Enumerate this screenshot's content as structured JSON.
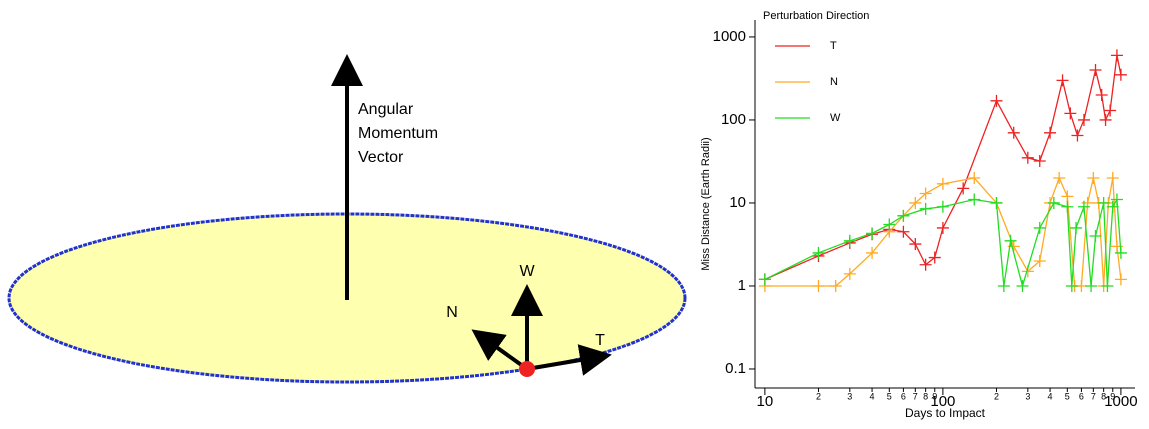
{
  "diagram": {
    "vector_label": [
      "Angular",
      "Momentum",
      "Vector"
    ],
    "labels": {
      "w": "W",
      "n": "N",
      "t": "T"
    }
  },
  "chart_data": {
    "type": "line",
    "xlabel": "Days to Impact",
    "ylabel": "Miss Distance (Earth Radii)",
    "legend_title": "Perturbation Direction",
    "legend": "upper left",
    "xscale": "log",
    "yscale": "log",
    "xlim": [
      8.8,
      1200
    ],
    "ylim": [
      0.059,
      1600
    ],
    "xticks": [
      10,
      {
        "value": 20,
        "label": "2"
      },
      {
        "value": 30,
        "label": "3"
      },
      {
        "value": 40,
        "label": "4"
      },
      {
        "value": 50,
        "label": "5"
      },
      {
        "value": 60,
        "label": "6"
      },
      {
        "value": 70,
        "label": "7"
      },
      {
        "value": 80,
        "label": "8"
      },
      {
        "value": 90,
        "label": "9"
      },
      100,
      {
        "value": 200,
        "label": "2"
      },
      {
        "value": 300,
        "label": "3"
      },
      {
        "value": 400,
        "label": "4"
      },
      {
        "value": 500,
        "label": "5"
      },
      {
        "value": 600,
        "label": "6"
      },
      {
        "value": 700,
        "label": "7"
      },
      {
        "value": 800,
        "label": "8"
      },
      {
        "value": 900,
        "label": "9"
      },
      1000
    ],
    "yticks": [
      0.1,
      1,
      10,
      100,
      1000
    ],
    "series": [
      {
        "name": "T",
        "color": "#ee2222",
        "x": [
          10,
          20,
          30,
          40,
          50,
          60,
          70,
          80,
          90,
          100,
          130,
          200,
          250,
          300,
          350,
          400,
          470,
          520,
          570,
          620,
          720,
          780,
          820,
          870,
          950,
          1000
        ],
        "values": [
          1.2,
          2.3,
          3.3,
          4.2,
          4.8,
          4.5,
          3.2,
          1.8,
          2.2,
          5,
          15,
          170,
          70,
          35,
          32,
          70,
          300,
          120,
          65,
          100,
          400,
          200,
          100,
          130,
          600,
          350
        ]
      },
      {
        "name": "N",
        "color": "#ffaa22",
        "x": [
          10,
          20,
          25,
          30,
          40,
          50,
          60,
          70,
          80,
          100,
          150,
          200,
          250,
          300,
          350,
          400,
          450,
          500,
          550,
          600,
          650,
          700,
          750,
          800,
          850,
          900,
          950,
          1000
        ],
        "values": [
          1,
          1,
          1,
          1.4,
          2.5,
          4.5,
          7,
          10,
          13,
          17,
          20,
          10,
          3,
          1.5,
          2,
          10,
          20,
          12,
          1,
          1,
          10,
          20,
          10,
          1,
          10,
          20,
          3,
          1.2
        ]
      },
      {
        "name": "W",
        "color": "#22dd22",
        "x": [
          10,
          20,
          30,
          40,
          50,
          60,
          80,
          100,
          150,
          200,
          220,
          240,
          280,
          350,
          420,
          500,
          530,
          560,
          620,
          680,
          720,
          800,
          840,
          900,
          950,
          1000
        ],
        "values": [
          1.2,
          2.5,
          3.5,
          4.3,
          5.5,
          7,
          8.5,
          9,
          11,
          10,
          1,
          3.5,
          1,
          5,
          10,
          9,
          1,
          5,
          9,
          1,
          4,
          10,
          1,
          9,
          11,
          2.5
        ]
      }
    ]
  }
}
